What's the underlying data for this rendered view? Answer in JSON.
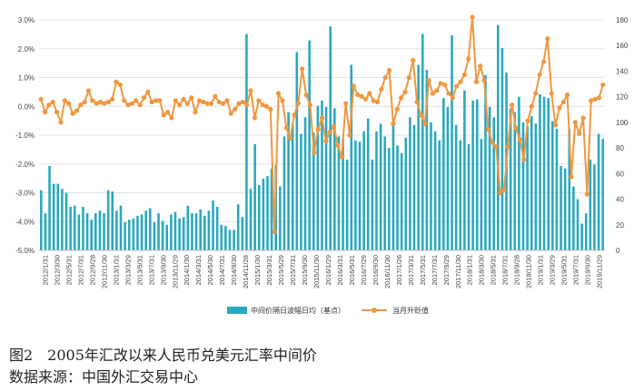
{
  "caption": {
    "figure": "图2　2005年汇改以来人民币兑美元汇率中间价",
    "source": "数据来源：中国外汇交易中心"
  },
  "chart_data": {
    "type": "bar+line",
    "colors": {
      "bar": "#2aa8bf",
      "line": "#f0973f"
    },
    "grid": true,
    "legend_position": "bottom",
    "left_axis": {
      "ylim": [
        -5.0,
        3.0
      ],
      "ticks": [
        "3.0%",
        "2.0%",
        "1.0%",
        "0.0%",
        "-1.0%",
        "-2.0%",
        "-3.0%",
        "-4.0%",
        "-5.0%"
      ]
    },
    "right_axis": {
      "ylim": [
        0,
        180
      ],
      "ticks": [
        "0",
        "20",
        "40",
        "60",
        "80",
        "100",
        "120",
        "140",
        "160",
        "180"
      ]
    },
    "x_tick_labels": [
      "2012/1/31",
      "2012/3/30",
      "2012/5/31",
      "2012/7/31",
      "2012/9/28",
      "2012/11/30",
      "2013/1/31",
      "2013/3/29",
      "2013/5/31",
      "2013/7/31",
      "2013/9/30",
      "2013/11/29",
      "2014/1/30",
      "2014/3/31",
      "2014/5/30",
      "2014/7/31",
      "2014/9/30",
      "2014/11/28",
      "2015/1/30",
      "2015/3/31",
      "2015/5/29",
      "2015/7/31",
      "2015/9/30",
      "2015/11/30",
      "2016/1/29",
      "2016/3/31",
      "2016/5/31",
      "2016/7/29",
      "2016/9/30",
      "2016/11/30",
      "2017/1/26",
      "2017/3/31",
      "2017/5/31",
      "2017/7/31",
      "2017/9/29",
      "2017/11/30",
      "2018/1/31",
      "2018/3/30",
      "2018/5/31",
      "2018/7/31",
      "2018/9/28",
      "2018/11/30",
      "2019/1/31",
      "2019/3/29",
      "2019/5/31",
      "2019/7/31",
      "2019/9/30",
      "2019/11/29"
    ],
    "series": [
      {
        "name": "中间价隔日波幅日均（基点）",
        "type": "bar",
        "axis": "right",
        "values": [
          47,
          29,
          66,
          52,
          52,
          48,
          45,
          34,
          35,
          28,
          34,
          29,
          24,
          29,
          31,
          29,
          47,
          46,
          31,
          35,
          22,
          24,
          25,
          27,
          28,
          31,
          33,
          22,
          29,
          23,
          20,
          28,
          30,
          25,
          26,
          35,
          29,
          29,
          32,
          27,
          31,
          39,
          34,
          20,
          19,
          16,
          16,
          36,
          26,
          169,
          48,
          83,
          51,
          56,
          58,
          64,
          67,
          50,
          89,
          108,
          98,
          155,
          91,
          104,
          164,
          92,
          113,
          117,
          112,
          175,
          111,
          89,
          87,
          71,
          145,
          86,
          85,
          93,
          103,
          71,
          93,
          99,
          89,
          80,
          100,
          82,
          76,
          88,
          104,
          98,
          145,
          169,
          141,
          100,
          93,
          86,
          119,
          112,
          168,
          98,
          86,
          125,
          83,
          117,
          118,
          87,
          137,
          112,
          104,
          176,
          158,
          139,
          111,
          108,
          120,
          100,
          97,
          105,
          99,
          122,
          120,
          119,
          101,
          95,
          66,
          64,
          95,
          50,
          40,
          21,
          29,
          71,
          67,
          91,
          87
        ]
      },
      {
        "name": "当月升贬值",
        "type": "line",
        "axis": "left",
        "values": [
          0.25,
          -0.2,
          0.05,
          0.15,
          -0.2,
          -0.55,
          0.2,
          0.1,
          -0.25,
          -0.15,
          0.05,
          0.15,
          0.55,
          0.2,
          0.1,
          0.15,
          0.1,
          0.15,
          0.25,
          0.85,
          0.75,
          0.2,
          0.05,
          0.1,
          0.2,
          0.05,
          0.3,
          0.5,
          0.15,
          0.2,
          0.2,
          -0.3,
          -0.2,
          -0.4,
          0.2,
          0.05,
          0.25,
          0.1,
          0.3,
          -0.2,
          0.2,
          0.15,
          0.1,
          0.1,
          0.35,
          0.15,
          0.1,
          0.2,
          -0.25,
          -0.1,
          0.1,
          0.15,
          0.05,
          0.55,
          -0.4,
          0.2,
          0.05,
          0.0,
          -0.1,
          -4.35,
          0.45,
          0.2,
          -0.75,
          -1.1,
          -0.3,
          0.1,
          1.3,
          0.4,
          0.05,
          -1.6,
          -0.8,
          -0.4,
          -1.2,
          -0.9,
          -0.7,
          -1.35,
          -1.75,
          0.1,
          -1.0,
          0.7,
          0.4,
          0.35,
          0.25,
          0.45,
          0.2,
          0.15,
          0.6,
          1.0,
          1.25,
          -0.6,
          -0.1,
          0.3,
          0.5,
          1.0,
          1.6,
          0.15,
          -0.3,
          -0.6,
          0.9,
          0.45,
          0.55,
          0.8,
          0.75,
          0.45,
          0.3,
          0.7,
          0.85,
          1.1,
          1.65,
          3.1,
          0.85,
          1.4,
          0.9,
          -0.8,
          -1.25,
          -1.4,
          -3.0,
          -2.9,
          -1.4,
          0.05,
          -0.75,
          -1.15,
          -1.85,
          -0.5,
          0.0,
          0.45,
          1.1,
          1.55,
          2.35,
          0.45,
          -0.65,
          -0.05,
          0.15,
          0.4,
          -2.45,
          -0.55,
          -0.95,
          -0.4,
          -3.05,
          0.2,
          0.25,
          0.3,
          0.75
        ]
      }
    ]
  }
}
